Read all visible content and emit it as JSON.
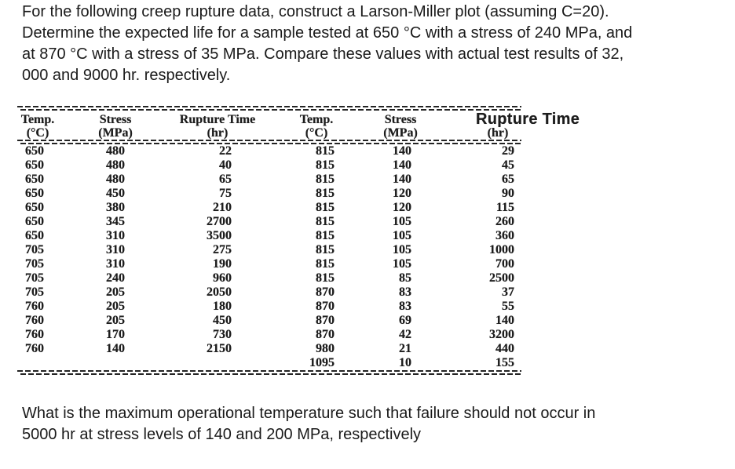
{
  "intro": {
    "lines": [
      "For the following creep rupture data, construct a Larson-Miller plot (assuming C=20).",
      "Determine the expected life for a sample tested at 650 °C with a stress of 240 MPa, and",
      "at 870 °C with a stress of 35 MPa. Compare these values with actual test results of 32,",
      "000 and 9000 hr. respectively."
    ]
  },
  "table": {
    "columns": [
      {
        "title": "Temp.",
        "unit": "(°C)"
      },
      {
        "title": "Stress",
        "unit": "(MPa)"
      },
      {
        "title": "Rupture Time",
        "unit": "(hr)"
      },
      {
        "title": "Temp.",
        "unit": "(°C)"
      },
      {
        "title": "Stress",
        "unit": "(MPa)"
      },
      {
        "title": "Rupture Time",
        "unit": "(hr)"
      }
    ],
    "rows": [
      [
        "650",
        "480",
        "22",
        "815",
        "140",
        "29"
      ],
      [
        "650",
        "480",
        "40",
        "815",
        "140",
        "45"
      ],
      [
        "650",
        "480",
        "65",
        "815",
        "140",
        "65"
      ],
      [
        "650",
        "450",
        "75",
        "815",
        "120",
        "90"
      ],
      [
        "650",
        "380",
        "210",
        "815",
        "120",
        "115"
      ],
      [
        "650",
        "345",
        "2700",
        "815",
        "105",
        "260"
      ],
      [
        "650",
        "310",
        "3500",
        "815",
        "105",
        "360"
      ],
      [
        "705",
        "310",
        "275",
        "815",
        "105",
        "1000"
      ],
      [
        "705",
        "310",
        "190",
        "815",
        "105",
        "700"
      ],
      [
        "705",
        "240",
        "960",
        "815",
        "85",
        "2500"
      ],
      [
        "705",
        "205",
        "2050",
        "870",
        "83",
        "37"
      ],
      [
        "760",
        "205",
        "180",
        "870",
        "83",
        "55"
      ],
      [
        "760",
        "205",
        "450",
        "870",
        "69",
        "140"
      ],
      [
        "760",
        "170",
        "730",
        "870",
        "42",
        "3200"
      ],
      [
        "760",
        "140",
        "2150",
        "980",
        "21",
        "440"
      ],
      [
        "",
        "",
        "",
        "1095",
        "10",
        "155"
      ]
    ]
  },
  "question": {
    "lines": [
      "What is the maximum operational temperature such that failure should not occur in",
      "5000 hr at stress levels of 140 and 200 MPa, respectively"
    ]
  }
}
